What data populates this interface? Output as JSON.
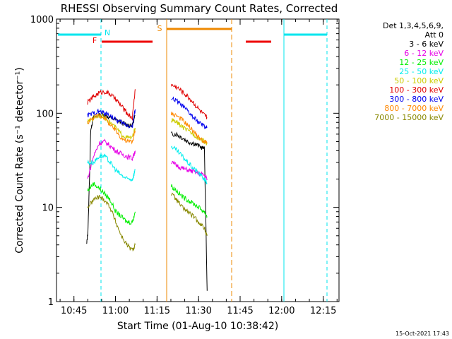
{
  "title": "RHESSI Observing Summary Count Rates, Corrected",
  "footer_date": "15-Oct-2021 17:43",
  "legend_header": [
    "Det 1,3,4,5,6,9,",
    "Att 0"
  ],
  "colors": {
    "3 - 6 keV": "#000000",
    "6 - 12 keV": "#e600e6",
    "12 - 25 keV": "#00ee00",
    "25 - 50 keV": "#00eeee",
    "50 - 100 keV": "#cccc00",
    "100 - 300 keV": "#e00000",
    "300 - 800 keV": "#0000ee",
    "800 - 7000 keV": "#ff8800",
    "7000 - 15000 keV": "#888800",
    "cyan_marker": "#00e5ee",
    "red_marker": "#ee0000",
    "orange_marker": "#ee8800"
  },
  "chart_data": {
    "type": "line",
    "title": "RHESSI Observing Summary Count Rates, Corrected",
    "xlabel": "Start Time (01-Aug-10 10:38:42)",
    "ylabel": "Corrected Count Rate (s⁻¹ detector⁻¹)",
    "y_scale": "log",
    "ylim": [
      1,
      1000
    ],
    "xlim_minutes_after_1038": [
      0,
      102
    ],
    "x_ticks": [
      "10:45",
      "11:00",
      "11:15",
      "11:30",
      "11:45",
      "12:00",
      "12:15"
    ],
    "y_ticks": [
      "1",
      "10",
      "100",
      "1000"
    ],
    "annotations": [
      {
        "label": "N",
        "time": "10:54"
      },
      {
        "label": "F",
        "time": "10:53"
      },
      {
        "label": "S",
        "time": "11:16"
      }
    ],
    "series": [
      {
        "name": "3 - 6 keV",
        "segment1": [
          [
            10.9,
            4
          ],
          [
            11.4,
            6
          ],
          [
            12.4,
            70
          ],
          [
            13.4,
            90
          ],
          [
            15.4,
            95
          ],
          [
            17.4,
            95
          ],
          [
            19.4,
            90
          ],
          [
            21.4,
            85
          ],
          [
            23.4,
            80
          ],
          [
            25.4,
            75
          ],
          [
            27.4,
            75
          ],
          [
            28.4,
            95
          ]
        ],
        "segment2": [
          [
            41.4,
            60
          ],
          [
            43.4,
            60
          ],
          [
            45.4,
            55
          ],
          [
            47.4,
            50
          ],
          [
            49.4,
            48
          ],
          [
            51.4,
            45
          ],
          [
            53.4,
            42
          ],
          [
            54.4,
            1.3
          ]
        ]
      },
      {
        "name": "6 - 12 keV",
        "segment1": [
          [
            11.2,
            20
          ],
          [
            13.4,
            35
          ],
          [
            15.4,
            48
          ],
          [
            17.4,
            50
          ],
          [
            19.4,
            45
          ],
          [
            21.4,
            40
          ],
          [
            23.4,
            37
          ],
          [
            25.4,
            35
          ],
          [
            27.4,
            33
          ],
          [
            28.4,
            40
          ]
        ],
        "segment2": [
          [
            41.4,
            30
          ],
          [
            43.4,
            28
          ],
          [
            45.4,
            26
          ],
          [
            47.4,
            25
          ],
          [
            49.4,
            24
          ],
          [
            51.4,
            23
          ],
          [
            53.4,
            22
          ],
          [
            54.4,
            20
          ]
        ]
      },
      {
        "name": "12 - 25 keV",
        "segment1": [
          [
            11.2,
            15
          ],
          [
            13.4,
            18
          ],
          [
            15.4,
            16
          ],
          [
            17.4,
            14
          ],
          [
            19.4,
            12
          ],
          [
            21.4,
            9
          ],
          [
            23.4,
            8
          ],
          [
            25.4,
            7
          ],
          [
            27.4,
            7
          ],
          [
            28.4,
            9
          ]
        ],
        "segment2": [
          [
            41.4,
            17
          ],
          [
            43.4,
            15
          ],
          [
            45.4,
            13
          ],
          [
            47.4,
            12
          ],
          [
            49.4,
            11
          ],
          [
            51.4,
            10
          ],
          [
            53.4,
            9
          ],
          [
            54.4,
            8
          ]
        ]
      },
      {
        "name": "25 - 50 keV",
        "segment1": [
          [
            11.2,
            30
          ],
          [
            13.4,
            30
          ],
          [
            15.4,
            35
          ],
          [
            17.4,
            35
          ],
          [
            19.4,
            30
          ],
          [
            21.4,
            25
          ],
          [
            23.4,
            22
          ],
          [
            25.4,
            20
          ],
          [
            27.4,
            20
          ],
          [
            28.4,
            25
          ]
        ],
        "segment2": [
          [
            41.4,
            45
          ],
          [
            43.4,
            40
          ],
          [
            45.4,
            35
          ],
          [
            47.4,
            30
          ],
          [
            49.4,
            26
          ],
          [
            51.4,
            23
          ],
          [
            53.4,
            20
          ],
          [
            54.4,
            18
          ]
        ]
      },
      {
        "name": "50 - 100 keV",
        "segment1": [
          [
            11.2,
            80
          ],
          [
            13.4,
            90
          ],
          [
            15.4,
            95
          ],
          [
            17.4,
            90
          ],
          [
            19.4,
            80
          ],
          [
            21.4,
            70
          ],
          [
            23.4,
            60
          ],
          [
            25.4,
            55
          ],
          [
            27.4,
            55
          ],
          [
            28.4,
            70
          ]
        ],
        "segment2": [
          [
            41.4,
            85
          ],
          [
            43.4,
            80
          ],
          [
            45.4,
            72
          ],
          [
            47.4,
            65
          ],
          [
            49.4,
            60
          ],
          [
            51.4,
            55
          ],
          [
            53.4,
            50
          ],
          [
            54.4,
            48
          ]
        ]
      },
      {
        "name": "100 - 300 keV",
        "segment1": [
          [
            11.2,
            130
          ],
          [
            13.4,
            150
          ],
          [
            15.4,
            165
          ],
          [
            17.4,
            170
          ],
          [
            19.4,
            160
          ],
          [
            21.4,
            140
          ],
          [
            23.4,
            120
          ],
          [
            25.4,
            100
          ],
          [
            27.4,
            90
          ],
          [
            28.4,
            180
          ]
        ],
        "segment2": [
          [
            41.4,
            200
          ],
          [
            43.4,
            190
          ],
          [
            45.4,
            170
          ],
          [
            47.4,
            150
          ],
          [
            49.4,
            130
          ],
          [
            51.4,
            110
          ],
          [
            53.4,
            95
          ],
          [
            54.4,
            90
          ]
        ]
      },
      {
        "name": "300 - 800 keV",
        "segment1": [
          [
            11.2,
            95
          ],
          [
            13.4,
            100
          ],
          [
            15.4,
            105
          ],
          [
            17.4,
            100
          ],
          [
            19.4,
            95
          ],
          [
            21.4,
            85
          ],
          [
            23.4,
            80
          ],
          [
            25.4,
            75
          ],
          [
            27.4,
            72
          ],
          [
            28.4,
            110
          ]
        ],
        "segment2": [
          [
            41.4,
            145
          ],
          [
            43.4,
            135
          ],
          [
            45.4,
            120
          ],
          [
            47.4,
            105
          ],
          [
            49.4,
            90
          ],
          [
            51.4,
            80
          ],
          [
            53.4,
            72
          ],
          [
            54.4,
            70
          ]
        ]
      },
      {
        "name": "800 - 7000 keV",
        "segment1": [
          [
            11.2,
            80
          ],
          [
            13.4,
            90
          ],
          [
            15.4,
            95
          ],
          [
            17.4,
            90
          ],
          [
            19.4,
            75
          ],
          [
            21.4,
            65
          ],
          [
            23.4,
            55
          ],
          [
            25.4,
            50
          ],
          [
            27.4,
            50
          ],
          [
            28.4,
            65
          ]
        ],
        "segment2": [
          [
            41.4,
            100
          ],
          [
            43.4,
            95
          ],
          [
            45.4,
            85
          ],
          [
            47.4,
            75
          ],
          [
            49.4,
            65
          ],
          [
            51.4,
            55
          ],
          [
            53.4,
            50
          ],
          [
            54.4,
            48
          ]
        ]
      },
      {
        "name": "7000 - 15000 keV",
        "segment1": [
          [
            11.2,
            10
          ],
          [
            13.4,
            12
          ],
          [
            15.4,
            13
          ],
          [
            17.4,
            12
          ],
          [
            19.4,
            10
          ],
          [
            21.4,
            7
          ],
          [
            23.4,
            5
          ],
          [
            25.4,
            4
          ],
          [
            27.4,
            3.5
          ],
          [
            28.4,
            4
          ]
        ],
        "segment2": [
          [
            41.4,
            14
          ],
          [
            43.4,
            12
          ],
          [
            45.4,
            10
          ],
          [
            47.4,
            9
          ],
          [
            49.4,
            8
          ],
          [
            51.4,
            7
          ],
          [
            53.4,
            6
          ],
          [
            54.4,
            5
          ]
        ]
      }
    ]
  }
}
